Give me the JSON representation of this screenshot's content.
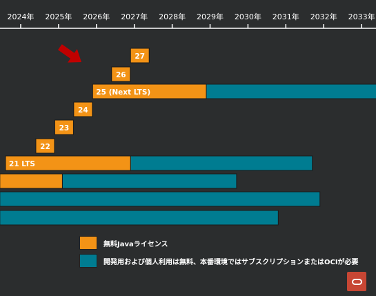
{
  "colors": {
    "background": "#2b2d2e",
    "free": "#f39316",
    "paid": "#007c91",
    "arrow": "#c00000",
    "logo": "#c74634"
  },
  "chart_data": {
    "type": "bar",
    "orientation": "horizontal-timeline",
    "x_axis": {
      "ticks": [
        "2024年",
        "2025年",
        "2026年",
        "2027年",
        "2028年",
        "2029年",
        "2030年",
        "2031年",
        "2032年",
        "2033年"
      ],
      "tick_values": [
        2024,
        2025,
        2026,
        2027,
        2028,
        2029,
        2030,
        2031,
        2032,
        2033
      ],
      "range": [
        2023.45,
        2033.4
      ],
      "grid": false
    },
    "rows": [
      {
        "label": "27",
        "free": [
          2026.9,
          2027.4
        ],
        "paid": null
      },
      {
        "label": "26",
        "free": [
          2026.4,
          2026.9
        ],
        "paid": null
      },
      {
        "label": "25 (Next LTS)",
        "free": [
          2025.9,
          2028.9
        ],
        "paid": [
          2028.9,
          2033.4
        ]
      },
      {
        "label": "24",
        "free": [
          2025.4,
          2025.9
        ],
        "paid": null
      },
      {
        "label": "23",
        "free": [
          2024.9,
          2025.4
        ],
        "paid": null
      },
      {
        "label": "22",
        "free": [
          2024.4,
          2024.9
        ],
        "paid": null
      },
      {
        "label": "21 LTS",
        "free": [
          2023.6,
          2026.9
        ],
        "paid": [
          2026.9,
          2031.7
        ]
      },
      {
        "label": "",
        "free": [
          2023.45,
          2025.1
        ],
        "paid": [
          2025.1,
          2029.7
        ]
      },
      {
        "label": "",
        "free": null,
        "paid": [
          2023.45,
          2031.9
        ]
      },
      {
        "label": "",
        "free": null,
        "paid": [
          2023.45,
          2030.8
        ]
      }
    ],
    "annotation": {
      "type": "arrow",
      "points_to": "26"
    },
    "legend": [
      {
        "key": "free",
        "label": "無料Javaライセンス"
      },
      {
        "key": "paid",
        "label": "開発用および個人利用は無料、本番環境ではサブスクリプションまたはOCIが必要"
      }
    ],
    "legend_position": "bottom"
  }
}
